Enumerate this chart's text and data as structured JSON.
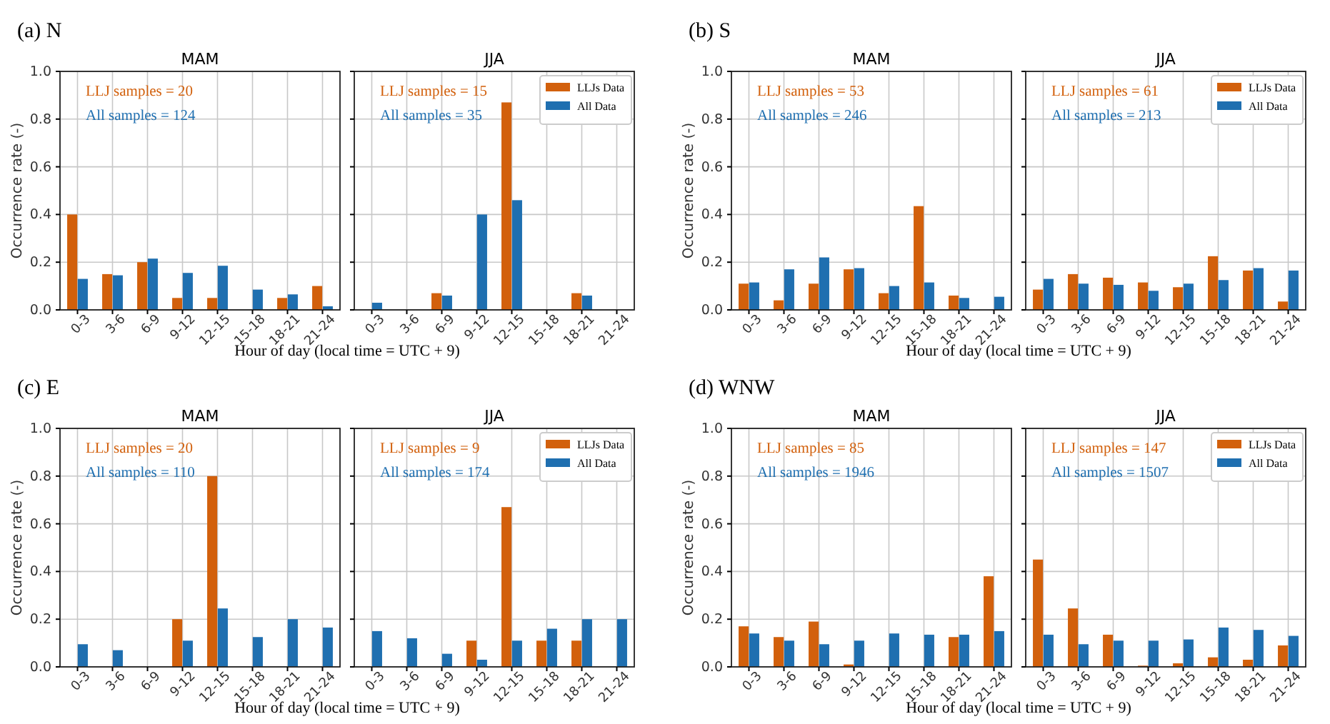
{
  "chart_data": [
    {
      "type": "bar",
      "subtitle": "(a) N",
      "title": "MAM",
      "xlabel": "Hour of day (local time = UTC + 9)",
      "ylabel": "Occurrence rate (-)",
      "categories": [
        "0-3",
        "3-6",
        "6-9",
        "9-12",
        "12-15",
        "15-18",
        "18-21",
        "21-24"
      ],
      "series": [
        {
          "color": "#d2600c",
          "values": [
            0.4,
            0.15,
            0.2,
            0.05,
            0.05,
            0,
            0.05,
            0.1
          ]
        },
        {
          "color": "#1f6fb0",
          "values": [
            0.13,
            0.145,
            0.215,
            0.155,
            0.185,
            0.085,
            0.065,
            0.015
          ]
        }
      ],
      "ylim": [
        0,
        1
      ],
      "yticks": [
        {
          "value": 0,
          "label": "0.0"
        },
        {
          "value": 0.2,
          "label": "0.2"
        },
        {
          "value": 0.4,
          "label": "0.4"
        },
        {
          "value": 0.6,
          "label": "0.6"
        },
        {
          "value": 0.8,
          "label": "0.8"
        },
        {
          "value": 1,
          "label": "1.0"
        }
      ],
      "grid": true,
      "annotations": [
        "LLJ samples = 20",
        "All samples = 124"
      ]
    },
    {
      "type": "bar",
      "title": "JJA",
      "categories": [
        "0-3",
        "3-6",
        "6-9",
        "9-12",
        "12-15",
        "15-18",
        "18-21",
        "21-24"
      ],
      "series": [
        {
          "name": "LLJs Data",
          "color": "#d2600c",
          "values": [
            0,
            0,
            0.07,
            0,
            0.87,
            0,
            0.07,
            0
          ]
        },
        {
          "name": "All Data",
          "color": "#1f6fb0",
          "values": [
            0.03,
            0,
            0.06,
            0.4,
            0.46,
            0,
            0.06,
            0
          ]
        }
      ],
      "ylim": [
        0,
        1
      ],
      "yticks": [
        {
          "value": 0,
          "label": null
        },
        {
          "value": 0.2,
          "label": null
        },
        {
          "value": 0.4,
          "label": null
        },
        {
          "value": 0.6,
          "label": null
        },
        {
          "value": 0.8,
          "label": null
        },
        {
          "value": 1,
          "label": null
        }
      ],
      "tick_labels": "x",
      "grid": true,
      "legend": "top right",
      "annotations": [
        "LLJ samples = 15",
        "All samples = 35"
      ]
    },
    {
      "type": "bar",
      "subtitle": "(b) S",
      "title": "MAM",
      "xlabel": "Hour of day (local time = UTC + 9)",
      "ylabel": "Occurrence rate (-)",
      "categories": [
        "0-3",
        "3-6",
        "6-9",
        "9-12",
        "12-15",
        "15-18",
        "18-21",
        "21-24"
      ],
      "series": [
        {
          "color": "#d2600c",
          "values": [
            0.11,
            0.04,
            0.11,
            0.17,
            0.07,
            0.435,
            0.06,
            0
          ]
        },
        {
          "color": "#1f6fb0",
          "values": [
            0.115,
            0.17,
            0.22,
            0.175,
            0.1,
            0.115,
            0.05,
            0.055
          ]
        }
      ],
      "ylim": [
        0,
        1
      ],
      "yticks": [
        {
          "value": 0,
          "label": "0.0"
        },
        {
          "value": 0.2,
          "label": "0.2"
        },
        {
          "value": 0.4,
          "label": "0.4"
        },
        {
          "value": 0.6,
          "label": "0.6"
        },
        {
          "value": 0.8,
          "label": "0.8"
        },
        {
          "value": 1,
          "label": "1.0"
        }
      ],
      "grid": true,
      "annotations": [
        "LLJ samples = 53",
        "All samples = 246"
      ]
    },
    {
      "type": "bar",
      "title": "JJA",
      "categories": [
        "0-3",
        "3-6",
        "6-9",
        "9-12",
        "12-15",
        "15-18",
        "18-21",
        "21-24"
      ],
      "series": [
        {
          "name": "LLJs Data",
          "color": "#d2600c",
          "values": [
            0.085,
            0.15,
            0.135,
            0.115,
            0.095,
            0.225,
            0.165,
            0.035
          ]
        },
        {
          "name": "All Data",
          "color": "#1f6fb0",
          "values": [
            0.13,
            0.11,
            0.105,
            0.08,
            0.11,
            0.125,
            0.175,
            0.165
          ]
        }
      ],
      "ylim": [
        0,
        1
      ],
      "yticks": [
        {
          "value": 0,
          "label": null
        },
        {
          "value": 0.2,
          "label": null
        },
        {
          "value": 0.4,
          "label": null
        },
        {
          "value": 0.6,
          "label": null
        },
        {
          "value": 0.8,
          "label": null
        },
        {
          "value": 1,
          "label": null
        }
      ],
      "tick_labels": "x",
      "grid": true,
      "legend": "top right",
      "annotations": [
        "LLJ samples = 61",
        "All samples = 213"
      ]
    },
    {
      "type": "bar",
      "subtitle": "(c) E",
      "title": "MAM",
      "xlabel": "Hour of day (local time = UTC + 9)",
      "ylabel": "Occurrence rate (-)",
      "categories": [
        "0-3",
        "3-6",
        "6-9",
        "9-12",
        "12-15",
        "15-18",
        "18-21",
        "21-24"
      ],
      "series": [
        {
          "color": "#d2600c",
          "values": [
            0,
            0,
            0,
            0.2,
            0.8,
            0,
            0,
            0
          ]
        },
        {
          "color": "#1f6fb0",
          "values": [
            0.095,
            0.07,
            0,
            0.11,
            0.245,
            0.125,
            0.2,
            0.165
          ]
        }
      ],
      "ylim": [
        0,
        1
      ],
      "yticks": [
        {
          "value": 0,
          "label": "0.0"
        },
        {
          "value": 0.2,
          "label": "0.2"
        },
        {
          "value": 0.4,
          "label": "0.4"
        },
        {
          "value": 0.6,
          "label": "0.6"
        },
        {
          "value": 0.8,
          "label": "0.8"
        },
        {
          "value": 1,
          "label": "1.0"
        }
      ],
      "grid": true,
      "annotations": [
        "LLJ samples = 20",
        "All samples = 110"
      ]
    },
    {
      "type": "bar",
      "title": "JJA",
      "categories": [
        "0-3",
        "3-6",
        "6-9",
        "9-12",
        "12-15",
        "15-18",
        "18-21",
        "21-24"
      ],
      "series": [
        {
          "name": "LLJs Data",
          "color": "#d2600c",
          "values": [
            0,
            0,
            0,
            0.11,
            0.67,
            0.11,
            0.11,
            0
          ]
        },
        {
          "name": "All Data",
          "color": "#1f6fb0",
          "values": [
            0.15,
            0.12,
            0.055,
            0.03,
            0.11,
            0.16,
            0.2,
            0.2
          ]
        }
      ],
      "ylim": [
        0,
        1
      ],
      "yticks": [
        {
          "value": 0,
          "label": null
        },
        {
          "value": 0.2,
          "label": null
        },
        {
          "value": 0.4,
          "label": null
        },
        {
          "value": 0.6,
          "label": null
        },
        {
          "value": 0.8,
          "label": null
        },
        {
          "value": 1,
          "label": null
        }
      ],
      "tick_labels": "x",
      "grid": true,
      "legend": "top right",
      "annotations": [
        "LLJ samples = 9",
        "All samples = 174"
      ]
    },
    {
      "type": "bar",
      "subtitle": "(d) WNW",
      "title": "MAM",
      "xlabel": "Hour of day (local time = UTC + 9)",
      "ylabel": "Occurrence rate (-)",
      "categories": [
        "0-3",
        "3-6",
        "6-9",
        "9-12",
        "12-15",
        "15-18",
        "18-21",
        "21-24"
      ],
      "series": [
        {
          "color": "#d2600c",
          "values": [
            0.17,
            0.125,
            0.19,
            0.01,
            0,
            0,
            0.125,
            0.38
          ]
        },
        {
          "color": "#1f6fb0",
          "values": [
            0.14,
            0.11,
            0.095,
            0.11,
            0.14,
            0.135,
            0.135,
            0.15
          ]
        }
      ],
      "ylim": [
        0,
        1
      ],
      "yticks": [
        {
          "value": 0,
          "label": "0.0"
        },
        {
          "value": 0.2,
          "label": "0.2"
        },
        {
          "value": 0.4,
          "label": "0.4"
        },
        {
          "value": 0.6,
          "label": "0.6"
        },
        {
          "value": 0.8,
          "label": "0.8"
        },
        {
          "value": 1,
          "label": "1.0"
        }
      ],
      "grid": true,
      "annotations": [
        "LLJ samples = 85",
        "All samples = 1946"
      ]
    },
    {
      "type": "bar",
      "title": "JJA",
      "categories": [
        "0-3",
        "3-6",
        "6-9",
        "9-12",
        "12-15",
        "15-18",
        "18-21",
        "21-24"
      ],
      "series": [
        {
          "name": "LLJs Data",
          "color": "#d2600c",
          "values": [
            0.45,
            0.245,
            0.135,
            0.005,
            0.015,
            0.04,
            0.03,
            0.09
          ]
        },
        {
          "name": "All Data",
          "color": "#1f6fb0",
          "values": [
            0.135,
            0.095,
            0.11,
            0.11,
            0.115,
            0.165,
            0.155,
            0.13
          ]
        }
      ],
      "ylim": [
        0,
        1
      ],
      "yticks": [
        {
          "value": 0,
          "label": null
        },
        {
          "value": 0.2,
          "label": null
        },
        {
          "value": 0.4,
          "label": null
        },
        {
          "value": 0.6,
          "label": null
        },
        {
          "value": 0.8,
          "label": null
        },
        {
          "value": 1,
          "label": null
        }
      ],
      "tick_labels": "x",
      "grid": true,
      "legend": "top right",
      "annotations": [
        "LLJ samples = 147",
        "All samples = 1507"
      ]
    }
  ]
}
